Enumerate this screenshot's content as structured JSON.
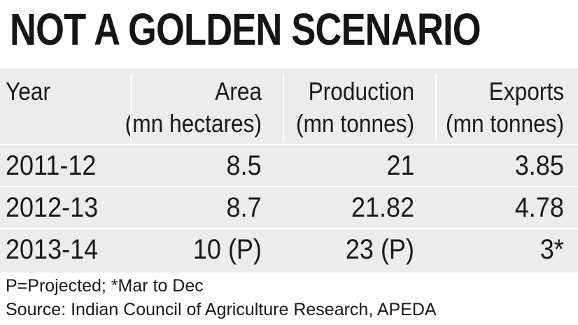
{
  "title": "NOT A GOLDEN SCENARIO",
  "chart_data": {
    "type": "table",
    "title": "NOT A GOLDEN SCENARIO",
    "columns": [
      {
        "label_line1": "Year",
        "label_line2": ""
      },
      {
        "label_line1": "Area",
        "label_line2": "(mn hectares)"
      },
      {
        "label_line1": "Production",
        "label_line2": "(mn tonnes)"
      },
      {
        "label_line1": "Exports",
        "label_line2": "(mn tonnes)"
      }
    ],
    "rows": [
      [
        "2011-12",
        "8.5",
        "21",
        "3.85"
      ],
      [
        "2012-13",
        "8.7",
        "21.82",
        "4.78"
      ],
      [
        "2013-14",
        "10 (P)",
        "23 (P)",
        "3*"
      ]
    ]
  },
  "footnotes": {
    "legend": "P=Projected; *Mar to Dec",
    "source": "Source: Indian Council of Agriculture Research, APEDA"
  },
  "colors": {
    "table_background": "#ececec",
    "divider": "#ffffff",
    "text": "#1a1a1a"
  }
}
